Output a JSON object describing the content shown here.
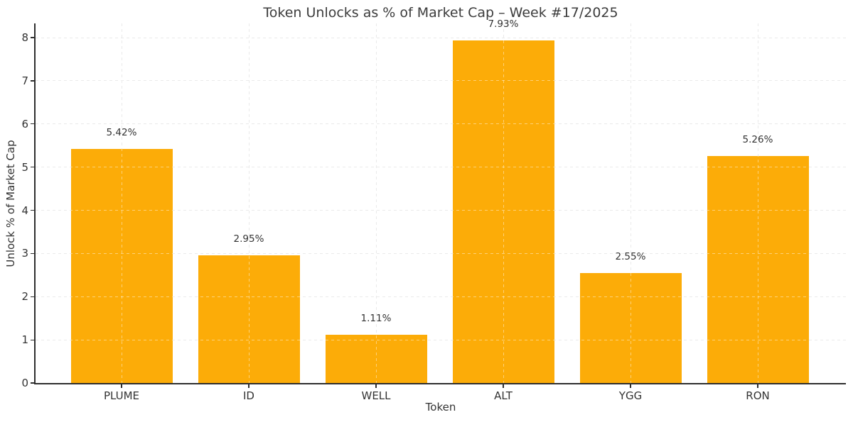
{
  "chart_data": {
    "type": "bar",
    "title": "Token Unlocks as % of Market Cap – Week #17/2025",
    "xlabel": "Token",
    "ylabel": "Unlock % of Market Cap",
    "categories": [
      "PLUME",
      "ID",
      "WELL",
      "ALT",
      "YGG",
      "RON"
    ],
    "values": [
      5.42,
      2.95,
      1.11,
      7.93,
      2.55,
      5.26
    ],
    "bar_labels": [
      "5.42%",
      "2.95%",
      "1.11%",
      "7.93%",
      "2.55%",
      "5.26%"
    ],
    "yticks": [
      0,
      1,
      2,
      3,
      4,
      5,
      6,
      7,
      8
    ],
    "ylim": [
      0,
      8.33
    ],
    "bar_color": "#fcac08",
    "grid": true,
    "grid_style": "dashed",
    "legend": "none",
    "axis_color": "#2e2e2e",
    "grid_color": "#d8d8d8",
    "text_color": "#333333"
  }
}
